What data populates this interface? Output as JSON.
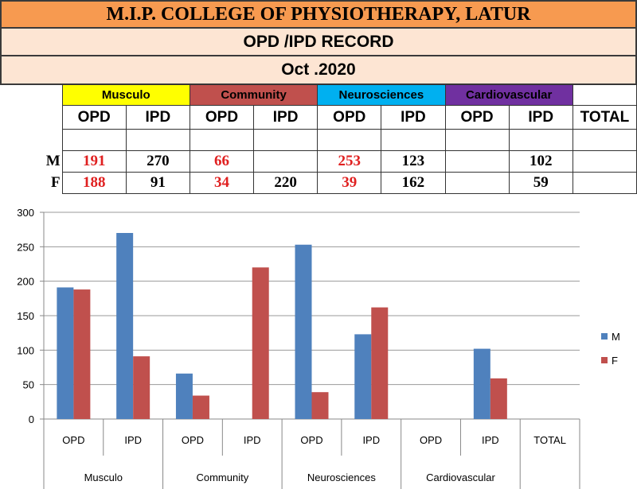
{
  "header": {
    "title": "M.I.P. COLLEGE OF PHYSIOTHERAPY, LATUR",
    "subtitle": "OPD /IPD RECORD",
    "month": "Oct .2020"
  },
  "table": {
    "categories": [
      {
        "label": "Musculo",
        "color": "#ffff00"
      },
      {
        "label": "Community",
        "color": "#c0504d"
      },
      {
        "label": "Neurosciences",
        "color": "#00b0f0"
      },
      {
        "label": "Cardiovascular",
        "color": "#7030a0"
      }
    ],
    "columns": [
      "OPD",
      "IPD",
      "OPD",
      "IPD",
      "OPD",
      "IPD",
      "OPD",
      "IPD",
      "TOTAL"
    ],
    "rows": [
      {
        "label": "M",
        "values": [
          "191",
          "270",
          "66",
          "",
          "253",
          "123",
          "",
          "102",
          ""
        ]
      },
      {
        "label": "F",
        "values": [
          "188",
          "91",
          "34",
          "220",
          "39",
          "162",
          "",
          "59",
          ""
        ]
      }
    ]
  },
  "chart_data": {
    "type": "bar",
    "categories": [
      "OPD",
      "IPD",
      "OPD",
      "IPD",
      "OPD",
      "IPD",
      "OPD",
      "IPD",
      "TOTAL"
    ],
    "groups": [
      {
        "label": "Musculo",
        "span": 2
      },
      {
        "label": "Community",
        "span": 2
      },
      {
        "label": "Neurosciences",
        "span": 2
      },
      {
        "label": "Cardiovascular",
        "span": 2
      },
      {
        "label": "",
        "span": 1
      }
    ],
    "series": [
      {
        "name": "M",
        "color": "#4f81bd",
        "values": [
          191,
          270,
          66,
          null,
          253,
          123,
          null,
          102,
          null
        ]
      },
      {
        "name": "F",
        "color": "#c0504d",
        "values": [
          188,
          91,
          34,
          220,
          39,
          162,
          null,
          59,
          null
        ]
      }
    ],
    "ylim": [
      0,
      300
    ],
    "yticks": [
      0,
      50,
      100,
      150,
      200,
      250,
      300
    ],
    "grid": true,
    "legend": "right"
  }
}
